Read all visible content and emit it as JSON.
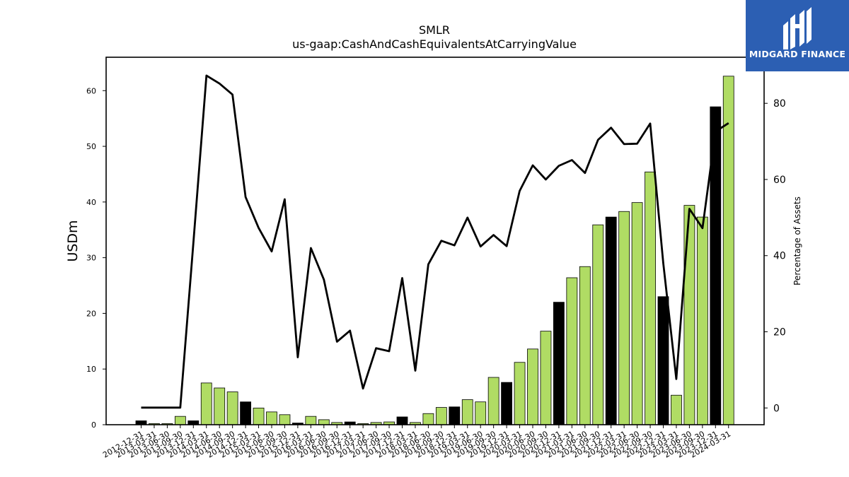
{
  "logo": {
    "text": "MIDGARD FINANCE"
  },
  "chart_data": {
    "type": "bar",
    "title": "SMLR",
    "subtitle": "us-gaap:CashAndCashEquivalentsAtCarryingValue",
    "ylabel": "USDm",
    "y2label": "Percentage of Assets",
    "ylim": [
      0,
      66
    ],
    "y2lim": [
      -4.4,
      92.1
    ],
    "yticks": [
      0,
      10,
      20,
      30,
      40,
      50,
      60
    ],
    "y2ticks": [
      0,
      20,
      40,
      60,
      80
    ],
    "categories": [
      "2012-12-31",
      "2013-03-31",
      "2013-06-30",
      "2013-09-30",
      "2013-12-31",
      "2014-03-31",
      "2014-06-30",
      "2014-09-30",
      "2014-12-31",
      "2015-03-31",
      "2015-06-30",
      "2015-09-30",
      "2015-12-31",
      "2016-03-31",
      "2016-06-30",
      "2016-09-30",
      "2016-12-31",
      "2017-03-31",
      "2017-06-30",
      "2017-09-30",
      "2017-12-31",
      "2018-03-31",
      "2018-06-30",
      "2018-09-30",
      "2018-12-31",
      "2019-03-31",
      "2019-06-30",
      "2019-09-30",
      "2019-12-31",
      "2020-03-31",
      "2020-06-30",
      "2020-09-30",
      "2020-12-31",
      "2021-03-31",
      "2021-06-30",
      "2021-09-30",
      "2021-12-31",
      "2022-03-31",
      "2022-06-30",
      "2022-09-30",
      "2022-12-31",
      "2023-03-31",
      "2023-06-30",
      "2023-09-30",
      "2023-12-31",
      "2024-03-31"
    ],
    "series": [
      {
        "kind": "bar",
        "values": [
          0.7,
          0.2,
          0.2,
          1.5,
          0.7,
          7.5,
          6.6,
          5.9,
          4.1,
          3.0,
          2.3,
          1.8,
          0.3,
          1.5,
          0.9,
          0.4,
          0.5,
          0.2,
          0.4,
          0.5,
          1.4,
          0.4,
          2.0,
          3.1,
          3.2,
          4.5,
          4.1,
          8.5,
          7.6,
          11.2,
          13.6,
          16.8,
          22.0,
          26.4,
          28.4,
          35.9,
          37.3,
          38.3,
          39.9,
          45.4,
          23.0,
          5.3,
          39.4,
          37.3,
          57.1,
          62.6
        ],
        "colors": [
          "#000000",
          "#b0dc64",
          "#b0dc64",
          "#b0dc64",
          "#000000",
          "#b0dc64",
          "#b0dc64",
          "#b0dc64",
          "#000000",
          "#b0dc64",
          "#b0dc64",
          "#b0dc64",
          "#000000",
          "#b0dc64",
          "#b0dc64",
          "#b0dc64",
          "#000000",
          "#b0dc64",
          "#b0dc64",
          "#b0dc64",
          "#000000",
          "#b0dc64",
          "#b0dc64",
          "#b0dc64",
          "#000000",
          "#b0dc64",
          "#b0dc64",
          "#b0dc64",
          "#000000",
          "#b0dc64",
          "#b0dc64",
          "#b0dc64",
          "#000000",
          "#b0dc64",
          "#b0dc64",
          "#b0dc64",
          "#000000",
          "#b0dc64",
          "#b0dc64",
          "#b0dc64",
          "#000000",
          "#b0dc64",
          "#b0dc64",
          "#b0dc64",
          "#000000",
          "#b0dc64"
        ]
      },
      {
        "kind": "line",
        "axis": "right",
        "color": "#000000",
        "values": [
          0.1,
          0.1,
          0.1,
          0.1,
          43.3,
          87.3,
          85.2,
          82.3,
          55.4,
          47.3,
          41.1,
          54.8,
          13.3,
          42.0,
          33.7,
          17.4,
          20.3,
          5.1,
          15.7,
          14.9,
          34.1,
          9.8,
          37.7,
          43.9,
          42.7,
          50.0,
          42.4,
          45.4,
          42.5,
          57.0,
          63.7,
          60.0,
          63.6,
          65.1,
          61.7,
          70.4,
          73.6,
          69.3,
          69.4,
          74.7,
          38.0,
          7.6,
          52.3,
          47.2,
          72.6,
          74.8
        ]
      }
    ],
    "colors": {
      "bar_green": "#b0dc64",
      "bar_black": "#000000",
      "line": "#000000",
      "logo_bg": "#2c5fb3"
    },
    "grid": false,
    "legend": "none"
  }
}
